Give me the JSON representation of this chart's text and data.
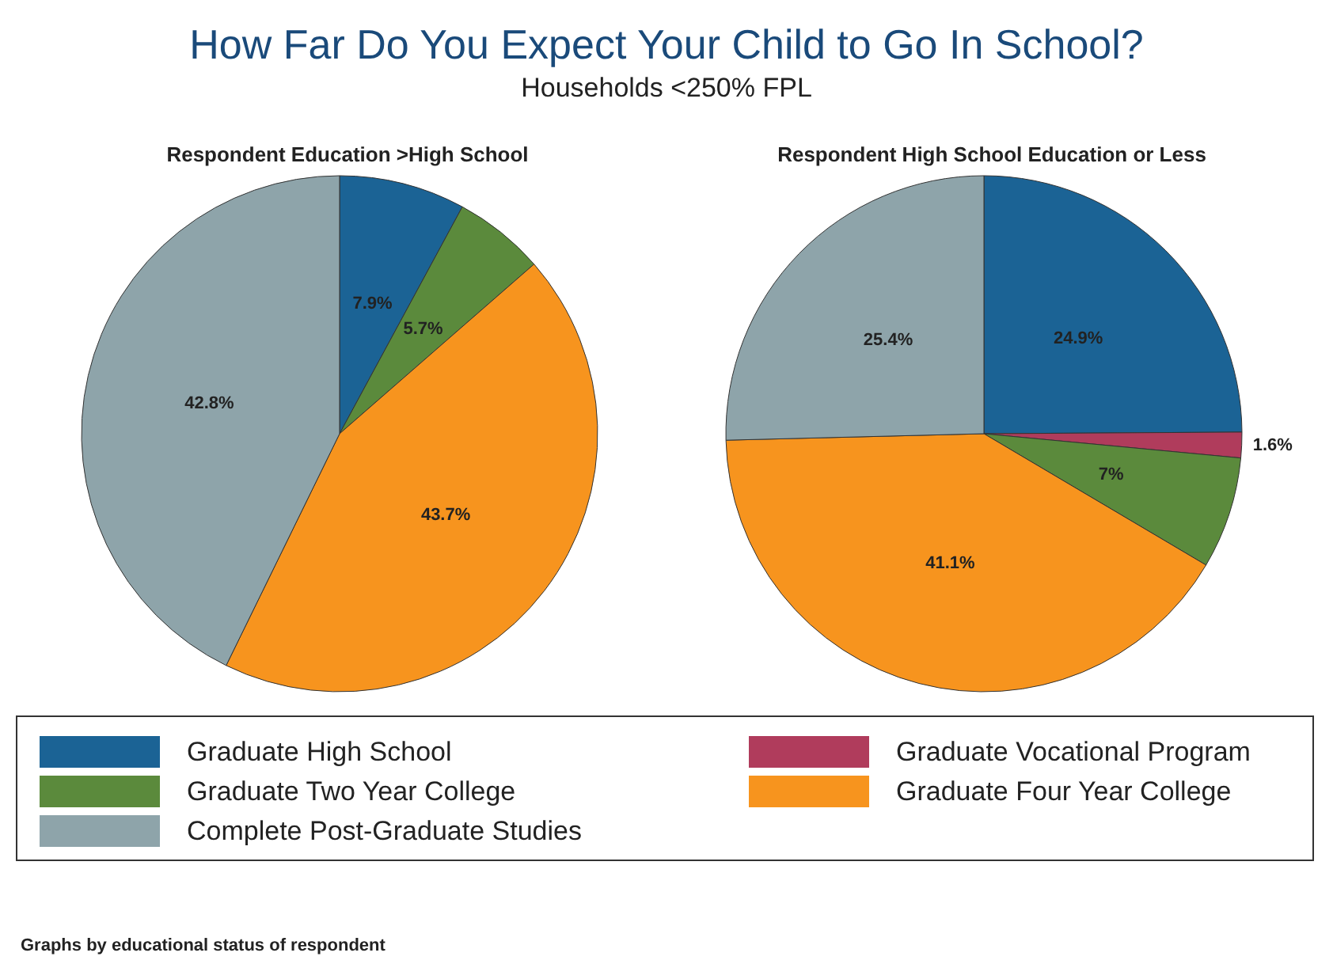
{
  "chart_data": {
    "type": "pie",
    "title": "How Far Do You Expect Your Child to Go In School?",
    "subtitle": "Households <250% FPL",
    "legend": "bottom",
    "annotations": [
      "Graphs by educational status of respondent"
    ],
    "categories": [
      "Graduate High School",
      "Graduate Vocational Program",
      "Graduate Two Year College",
      "Graduate Four Year College",
      "Complete Post-Graduate Studies"
    ],
    "colors": [
      "#1b6395",
      "#b03c5c",
      "#5b8a3c",
      "#f7941e",
      "#8ea4aa"
    ],
    "series": [
      {
        "name": "Respondent Education >High School",
        "values": [
          7.9,
          null,
          5.7,
          43.7,
          42.8
        ],
        "value_labels": [
          "7.9%",
          null,
          "5.7%",
          "43.7%",
          "42.8%"
        ]
      },
      {
        "name": "Respondent High School Education or Less",
        "values": [
          24.9,
          1.6,
          7,
          41.1,
          25.4
        ],
        "value_labels": [
          "24.9%",
          "1.6%",
          "7%",
          "41.1%",
          "25.4%"
        ]
      }
    ]
  }
}
